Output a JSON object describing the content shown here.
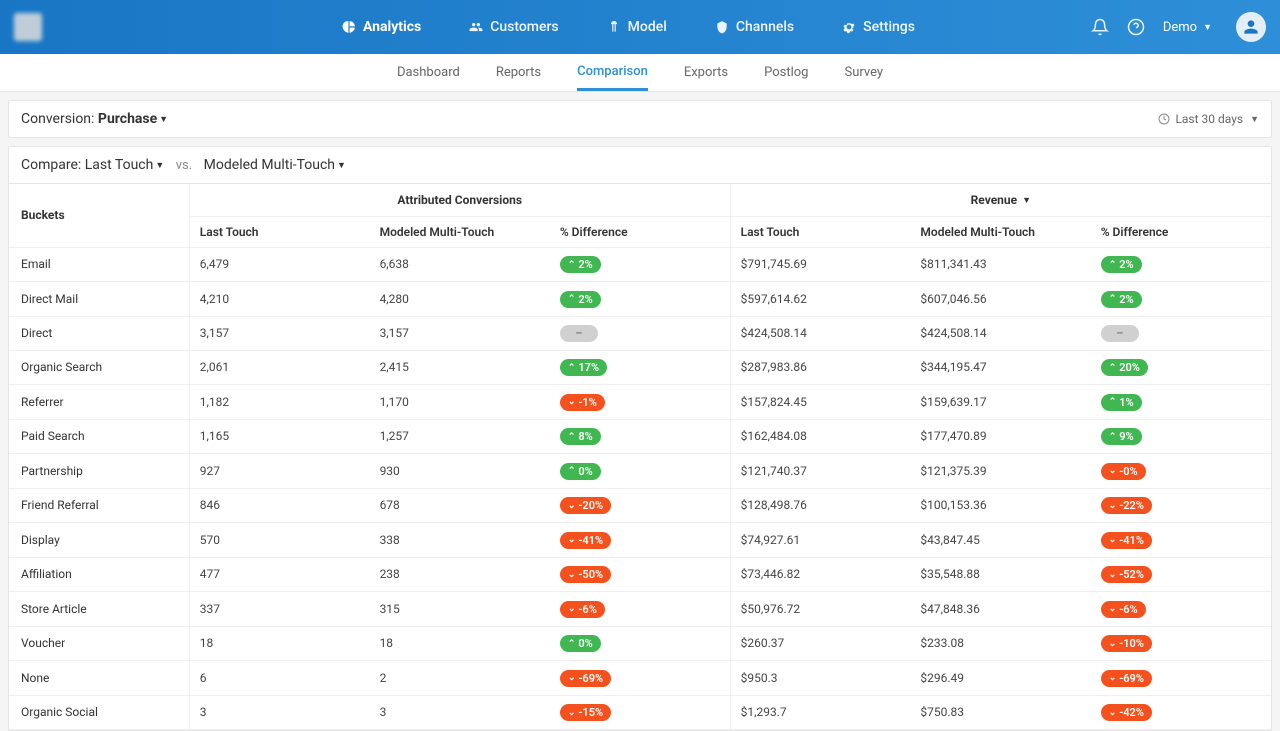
{
  "nav": {
    "items": [
      {
        "label": "Analytics",
        "active": true
      },
      {
        "label": "Customers",
        "active": false
      },
      {
        "label": "Model",
        "active": false
      },
      {
        "label": "Channels",
        "active": false
      },
      {
        "label": "Settings",
        "active": false
      }
    ],
    "user_label": "Demo"
  },
  "subnav": {
    "items": [
      {
        "label": "Dashboard",
        "active": false
      },
      {
        "label": "Reports",
        "active": false
      },
      {
        "label": "Comparison",
        "active": true
      },
      {
        "label": "Exports",
        "active": false
      },
      {
        "label": "Postlog",
        "active": false
      },
      {
        "label": "Survey",
        "active": false
      }
    ]
  },
  "conversion": {
    "label": "Conversion:",
    "value": "Purchase",
    "date_range": "Last 30 days"
  },
  "compare": {
    "label": "Compare:",
    "model_a": "Last Touch",
    "vs": "vs.",
    "model_b": "Modeled Multi-Touch"
  },
  "table": {
    "headers": {
      "buckets": "Buckets",
      "group1": "Attributed Conversions",
      "group2": "Revenue",
      "col1": "Last Touch",
      "col2": "Modeled Multi-Touch",
      "col3": "% Difference"
    },
    "rows": [
      {
        "bucket": "Email",
        "c1": "6,479",
        "c2": "6,638",
        "cd": "2%",
        "cdir": "up",
        "r1": "$791,745.69",
        "r2": "$811,341.43",
        "rd": "2%",
        "rdir": "up"
      },
      {
        "bucket": "Direct Mail",
        "c1": "4,210",
        "c2": "4,280",
        "cd": "2%",
        "cdir": "up",
        "r1": "$597,614.62",
        "r2": "$607,046.56",
        "rd": "2%",
        "rdir": "up"
      },
      {
        "bucket": "Direct",
        "c1": "3,157",
        "c2": "3,157",
        "cd": "–",
        "cdir": "neutral",
        "r1": "$424,508.14",
        "r2": "$424,508.14",
        "rd": "–",
        "rdir": "neutral"
      },
      {
        "bucket": "Organic Search",
        "c1": "2,061",
        "c2": "2,415",
        "cd": "17%",
        "cdir": "up",
        "r1": "$287,983.86",
        "r2": "$344,195.47",
        "rd": "20%",
        "rdir": "up"
      },
      {
        "bucket": "Referrer",
        "c1": "1,182",
        "c2": "1,170",
        "cd": "-1%",
        "cdir": "down",
        "r1": "$157,824.45",
        "r2": "$159,639.17",
        "rd": "1%",
        "rdir": "up"
      },
      {
        "bucket": "Paid Search",
        "c1": "1,165",
        "c2": "1,257",
        "cd": "8%",
        "cdir": "up",
        "r1": "$162,484.08",
        "r2": "$177,470.89",
        "rd": "9%",
        "rdir": "up"
      },
      {
        "bucket": "Partnership",
        "c1": "927",
        "c2": "930",
        "cd": "0%",
        "cdir": "up",
        "r1": "$121,740.37",
        "r2": "$121,375.39",
        "rd": "-0%",
        "rdir": "down"
      },
      {
        "bucket": "Friend Referral",
        "c1": "846",
        "c2": "678",
        "cd": "-20%",
        "cdir": "down",
        "r1": "$128,498.76",
        "r2": "$100,153.36",
        "rd": "-22%",
        "rdir": "down"
      },
      {
        "bucket": "Display",
        "c1": "570",
        "c2": "338",
        "cd": "-41%",
        "cdir": "down",
        "r1": "$74,927.61",
        "r2": "$43,847.45",
        "rd": "-41%",
        "rdir": "down"
      },
      {
        "bucket": "Affiliation",
        "c1": "477",
        "c2": "238",
        "cd": "-50%",
        "cdir": "down",
        "r1": "$73,446.82",
        "r2": "$35,548.88",
        "rd": "-52%",
        "rdir": "down"
      },
      {
        "bucket": "Store Article",
        "c1": "337",
        "c2": "315",
        "cd": "-6%",
        "cdir": "down",
        "r1": "$50,976.72",
        "r2": "$47,848.36",
        "rd": "-6%",
        "rdir": "down"
      },
      {
        "bucket": "Voucher",
        "c1": "18",
        "c2": "18",
        "cd": "0%",
        "cdir": "up",
        "r1": "$260.37",
        "r2": "$233.08",
        "rd": "-10%",
        "rdir": "down"
      },
      {
        "bucket": "None",
        "c1": "6",
        "c2": "2",
        "cd": "-69%",
        "cdir": "down",
        "r1": "$950.3",
        "r2": "$296.49",
        "rd": "-69%",
        "rdir": "down"
      },
      {
        "bucket": "Organic Social",
        "c1": "3",
        "c2": "3",
        "cd": "-15%",
        "cdir": "down",
        "r1": "$1,293.7",
        "r2": "$750.83",
        "rd": "-42%",
        "rdir": "down"
      }
    ]
  },
  "colors": {
    "topbar_start": "#1976c5",
    "topbar_end": "#2e8fd8",
    "badge_up": "#41b751",
    "badge_down": "#f4511e",
    "badge_neutral": "#d0d0d0",
    "background": "#f5f5f5",
    "panel_bg": "#ffffff",
    "border": "#e5e5e5"
  }
}
